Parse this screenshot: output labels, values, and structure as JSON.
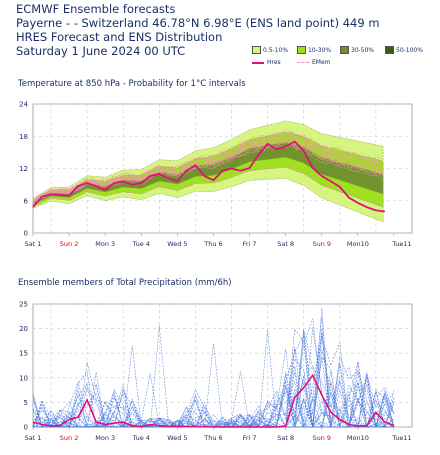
{
  "header": {
    "line1": "ECMWF Ensemble forecasts",
    "line2": "Payerne -  - Switzerland 46.78°N 6.98°E (ENS land point) 449 m",
    "line3": "HRES Forecast and ENS Distribution",
    "line4": "Saturday  1 June 2024 00 UTC"
  },
  "legend": {
    "bins": [
      {
        "label": "0.5-10%",
        "color": "#d4f57a"
      },
      {
        "label": "10-30%",
        "color": "#9ee01a"
      },
      {
        "label": "30-50%",
        "color": "#6f8f2e"
      },
      {
        "label": "50-100%",
        "color": "#3d5a0e"
      }
    ],
    "hres_label": "Hres",
    "emem_label": "EMem",
    "hres_color": "#e0107a",
    "emem_color": "#f090b0"
  },
  "chart_data": [
    {
      "type": "line",
      "title": "Temperature at 850 hPa - Probability for 1°C intervals",
      "ylim": [
        0,
        24
      ],
      "yticks": [
        0,
        6,
        12,
        18,
        24
      ],
      "xlim": [
        0,
        10.5
      ],
      "xticks": [
        {
          "label": "Sat 1",
          "red": false
        },
        {
          "label": "Sun 2",
          "red": true
        },
        {
          "label": "Mon 3",
          "red": false
        },
        {
          "label": "Tue 4",
          "red": false
        },
        {
          "label": "Wed 5",
          "red": false
        },
        {
          "label": "Thu 6",
          "red": false
        },
        {
          "label": "Fri 7",
          "red": false
        },
        {
          "label": "Sat 8",
          "red": false
        },
        {
          "label": "Sun 9",
          "red": true
        },
        {
          "label": "Mon10",
          "red": false
        },
        {
          "label": "Tue11",
          "red": false
        }
      ],
      "series": [
        {
          "name": "Hres",
          "x": [
            0,
            0.25,
            0.5,
            0.75,
            1,
            1.25,
            1.5,
            1.75,
            2,
            2.25,
            2.5,
            2.75,
            3,
            3.25,
            3.5,
            3.75,
            4,
            4.25,
            4.5,
            4.75,
            5,
            5.25,
            5.5,
            5.75,
            6,
            6.25,
            6.5,
            6.75,
            7,
            7.25,
            7.5,
            7.75,
            8,
            8.25,
            8.5,
            8.75,
            9,
            9.25,
            9.5,
            9.75
          ],
          "y": [
            4.8,
            6.8,
            7.2,
            7.1,
            7.0,
            8.7,
            9.3,
            8.7,
            8.0,
            9.3,
            9.6,
            9.0,
            9.3,
            10.6,
            11.0,
            10.2,
            9.6,
            11.6,
            12.6,
            10.6,
            9.8,
            11.6,
            12.0,
            11.6,
            12.1,
            14.6,
            16.6,
            15.6,
            16.1,
            17.0,
            15.3,
            12.1,
            10.6,
            9.6,
            8.6,
            6.6,
            5.6,
            4.8,
            4.2,
            4.0
          ]
        },
        {
          "name": "EMem",
          "x": [
            0,
            0.5,
            1,
            1.5,
            2,
            2.5,
            3,
            3.5,
            4,
            4.5,
            5,
            5.5,
            6,
            6.5,
            7,
            7.5,
            8,
            8.5,
            9,
            9.5,
            9.75
          ],
          "y": [
            5.5,
            7.2,
            7.0,
            8.8,
            8.2,
            9.2,
            9.0,
            10.5,
            10.0,
            11.5,
            11.8,
            13.0,
            14.5,
            15.0,
            15.5,
            14.5,
            12.5,
            11.5,
            10.5,
            9.5,
            9.0
          ]
        }
      ]
    },
    {
      "type": "line",
      "title": "Ensemble members of Total Precipitation (mm/6h)",
      "ylim": [
        0,
        25
      ],
      "yticks": [
        0,
        5,
        10,
        15,
        20,
        25
      ],
      "xlim": [
        0,
        10.5
      ],
      "series": [
        {
          "name": "Hres",
          "x": [
            0,
            0.25,
            0.5,
            0.75,
            1,
            1.25,
            1.5,
            1.75,
            2,
            2.25,
            2.5,
            2.75,
            3,
            3.25,
            3.5,
            3.75,
            4,
            4.5,
            5,
            5.5,
            6,
            6.5,
            6.75,
            7,
            7.25,
            7.5,
            7.75,
            8,
            8.25,
            8.5,
            8.75,
            9,
            9.25,
            9.5,
            9.75,
            10
          ],
          "y": [
            1.0,
            0.5,
            0.2,
            0.3,
            1.5,
            2.0,
            5.5,
            1.0,
            0.5,
            0.8,
            1.0,
            0.2,
            0.1,
            0.5,
            0.3,
            0.1,
            0.1,
            0.1,
            0.0,
            0.0,
            0.0,
            0.0,
            0.0,
            0.2,
            6.0,
            8.0,
            10.5,
            6.5,
            3.0,
            1.5,
            0.5,
            0.2,
            0.3,
            3.0,
            1.0,
            0.3
          ]
        }
      ]
    }
  ]
}
